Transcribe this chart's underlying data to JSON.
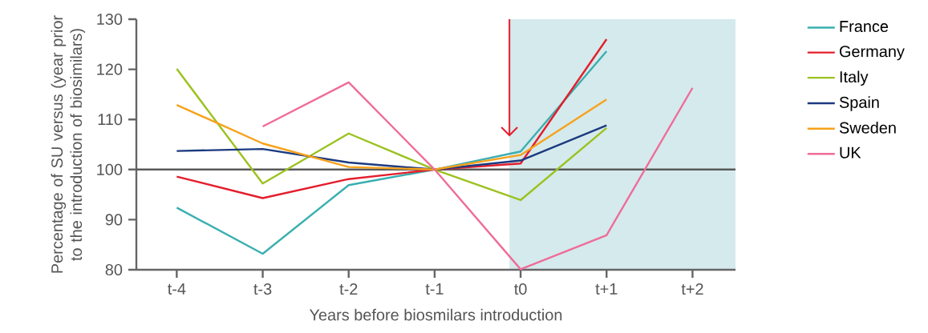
{
  "chart_data": {
    "type": "line",
    "xlabel": "Years before biosmilars introduction",
    "ylabel": "Percentage of SU versus (year prior to the introduction of biosimilars)",
    "categories": [
      "t-4",
      "t-3",
      "t-2",
      "t-1",
      "t0",
      "t+1",
      "t+2"
    ],
    "series": [
      {
        "name": "France",
        "color": "#3aafb0",
        "values": [
          92.4,
          83.2,
          96.9,
          100,
          103.6,
          123.6,
          null
        ]
      },
      {
        "name": "Germany",
        "color": "#e31e2d",
        "values": [
          98.6,
          94.3,
          98.1,
          100,
          101.2,
          126,
          null
        ]
      },
      {
        "name": "Italy",
        "color": "#9bc21f",
        "values": [
          120.1,
          97.2,
          107.2,
          100,
          93.9,
          108.3,
          null
        ]
      },
      {
        "name": "Spain",
        "color": "#1b3a80",
        "values": [
          103.7,
          104.1,
          101.4,
          100,
          101.8,
          108.8,
          null
        ]
      },
      {
        "name": "Sweden",
        "color": "#f7a21b",
        "values": [
          112.9,
          105.2,
          100.5,
          100,
          102.9,
          114,
          null
        ]
      },
      {
        "name": "UK",
        "color": "#ef6c9a",
        "values": [
          null,
          108.6,
          117.4,
          100,
          80.1,
          86.9,
          116.3
        ]
      }
    ],
    "ylim": [
      80,
      130
    ],
    "yticks": [
      80,
      90,
      100,
      110,
      120,
      130
    ],
    "ref_lines": [
      {
        "axis": "y",
        "value": 100,
        "color": "#5a5a5a"
      }
    ],
    "grid": false,
    "legend": "right",
    "marker": "none",
    "line_style": "solid"
  }
}
